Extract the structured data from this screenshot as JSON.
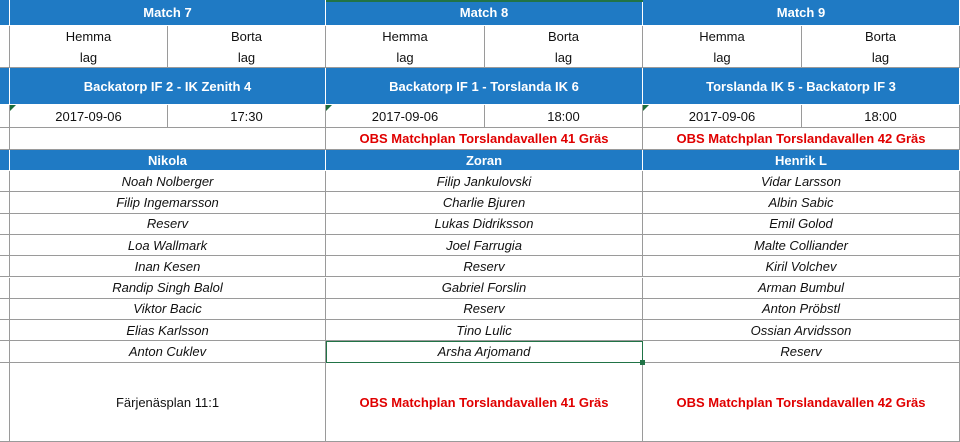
{
  "matches": [
    {
      "title": "Match 7",
      "home": [
        "Hemma",
        "lag"
      ],
      "away": [
        "Borta",
        "lag"
      ],
      "fixture": "Backatorp IF 2 - IK Zenith 4",
      "date": "2017-09-06",
      "time": "17:30",
      "note": ""
    },
    {
      "title": "Match 8",
      "home": [
        "Hemma",
        "lag"
      ],
      "away": [
        "Borta",
        "lag"
      ],
      "fixture": "Backatorp IF 1 - Torslanda IK 6",
      "date": "2017-09-06",
      "time": "18:00",
      "note": "OBS Matchplan Torslandavallen 41 Gräs"
    },
    {
      "title": "Match 9",
      "home": [
        "Hemma",
        "lag"
      ],
      "away": [
        "Borta",
        "lag"
      ],
      "fixture": "Torslanda IK 5 - Backatorp IF 3",
      "date": "2017-09-06",
      "time": "18:00",
      "note": "OBS Matchplan Torslandavallen 42 Gräs"
    }
  ],
  "coaches": [
    "Nikola",
    "Zoran",
    "Henrik L"
  ],
  "players": [
    [
      "Noah Nolberger",
      "Filip Ingemarsson",
      "Reserv",
      "Loa Wallmark",
      "Inan Kesen",
      "Randip Singh Balol",
      "Viktor Bacic",
      "Elias Karlsson",
      "Anton Cuklev"
    ],
    [
      "Filip Jankulovski",
      "Charlie Bjuren",
      "Lukas Didriksson",
      "Joel Farrugia",
      "Reserv",
      "Gabriel Forslin",
      "Reserv",
      "Tino Lulic",
      "Arsha Arjomand"
    ],
    [
      "Vidar Larsson",
      "Albin Sabic",
      "Emil Golod",
      "Malte Colliander",
      "Kiril Volchev",
      "Arman Bumbul",
      "Anton Pröbstl",
      "Ossian Arvidsson",
      "Reserv"
    ]
  ],
  "venues": [
    {
      "text": "Färjenäsplan 11:1",
      "style": "plain"
    },
    {
      "text": "OBS Matchplan Torslandavallen 41 Gräs",
      "style": "red"
    },
    {
      "text": "OBS Matchplan Torslandavallen 42 Gräs",
      "style": "red"
    }
  ],
  "colors": {
    "header_blue": "#1f7ac4",
    "note_red": "#e00000",
    "selection_green": "#217346"
  }
}
